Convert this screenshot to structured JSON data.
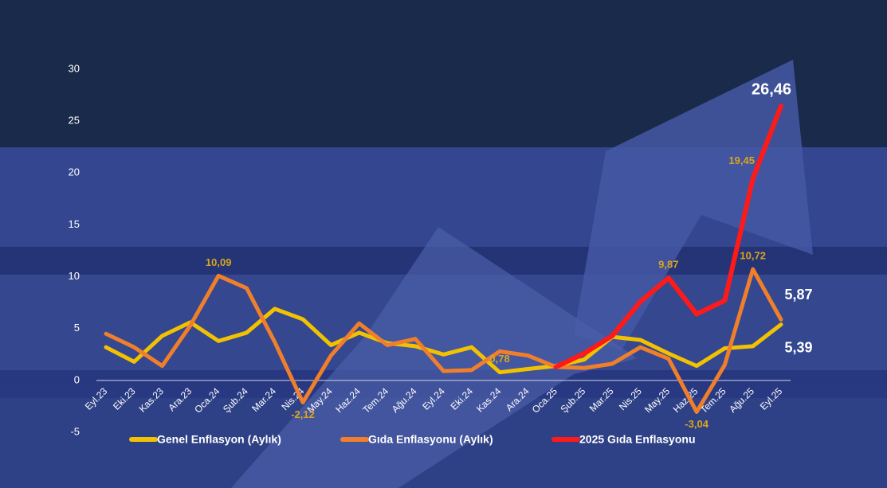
{
  "chart_data": {
    "type": "line",
    "categories": [
      "Eyl.23",
      "Eki.23",
      "Kas.23",
      "Ara.23",
      "Oca.24",
      "Şub.24",
      "Mar.24",
      "Nis.24",
      "May.24",
      "Haz.24",
      "Tem.24",
      "Ağu.24",
      "Eyl.24",
      "Eki.24",
      "Kas.24",
      "Ara.24",
      "Oca.25",
      "Şub.25",
      "Mar.25",
      "Nis.25",
      "May.25",
      "Haz.25",
      "Tem.25",
      "Ağu.25",
      "Eyl.25"
    ],
    "series": [
      {
        "name": "Genel Enflasyon (Aylık)",
        "color": "#f2c200",
        "values": [
          3.2,
          1.8,
          4.3,
          5.6,
          3.8,
          4.6,
          6.9,
          5.9,
          3.4,
          4.6,
          3.6,
          3.3,
          2.5,
          3.2,
          0.78,
          1.1,
          1.4,
          2.0,
          4.2,
          3.9,
          2.6,
          1.4,
          3.1,
          3.3,
          5.39
        ],
        "value_labels": [
          null,
          null,
          null,
          null,
          null,
          null,
          null,
          null,
          null,
          null,
          null,
          null,
          null,
          null,
          "0,78",
          null,
          null,
          null,
          null,
          null,
          null,
          null,
          null,
          null,
          "5,39"
        ]
      },
      {
        "name": "Gıda Enflasyonu (Aylık)",
        "color": "#f07f2c",
        "values": [
          4.5,
          3.2,
          1.4,
          5.3,
          10.09,
          8.9,
          3.7,
          -2.12,
          2.4,
          5.5,
          3.4,
          4.0,
          0.9,
          1.0,
          2.8,
          2.4,
          1.3,
          1.2,
          1.6,
          3.2,
          2.1,
          -3.04,
          1.5,
          10.72,
          5.87
        ],
        "value_labels": [
          null,
          null,
          null,
          null,
          "10,09",
          null,
          null,
          "-2,12",
          null,
          null,
          null,
          null,
          null,
          null,
          null,
          null,
          null,
          null,
          null,
          null,
          null,
          "-3,04",
          null,
          "10,72",
          "5,87"
        ]
      },
      {
        "name": "2025 Gıda Enflasyonu",
        "color": "#ff1a1a",
        "values": [
          null,
          null,
          null,
          null,
          null,
          null,
          null,
          null,
          null,
          null,
          null,
          null,
          null,
          null,
          null,
          null,
          1.3,
          2.6,
          4.3,
          7.6,
          9.87,
          6.4,
          7.7,
          19.45,
          26.46
        ],
        "value_labels": [
          null,
          null,
          null,
          null,
          null,
          null,
          null,
          null,
          null,
          null,
          null,
          null,
          null,
          null,
          null,
          null,
          null,
          null,
          null,
          null,
          "9,87",
          null,
          null,
          "19,45",
          "26,46"
        ]
      }
    ],
    "ylim": [
      -5,
      30
    ],
    "yticks": [
      -5,
      0,
      5,
      10,
      15,
      20,
      25,
      30
    ]
  }
}
